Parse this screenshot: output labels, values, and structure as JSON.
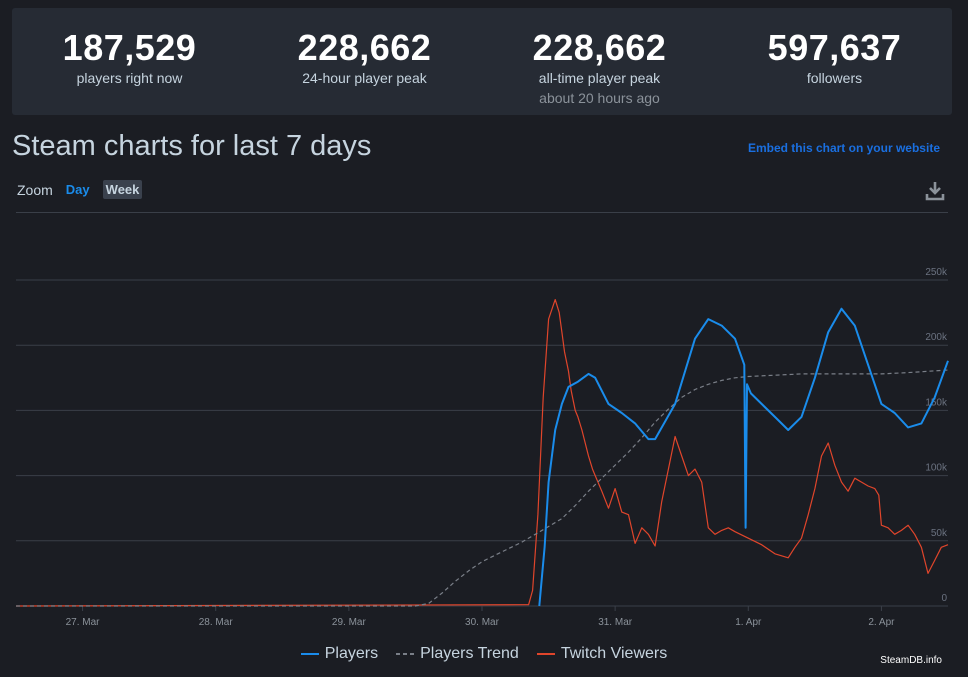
{
  "stats": [
    {
      "value": "187,529",
      "label": "players right now",
      "sub": ""
    },
    {
      "value": "228,662",
      "label": "24-hour player peak",
      "sub": ""
    },
    {
      "value": "228,662",
      "label": "all-time player peak",
      "sub": "about 20 hours ago"
    },
    {
      "value": "597,637",
      "label": "followers",
      "sub": ""
    }
  ],
  "title": "Steam charts for last 7 days",
  "embed_link": "Embed this chart on your website",
  "zoom": {
    "label": "Zoom",
    "day": "Day",
    "week": "Week"
  },
  "credit": "SteamDB.info",
  "colors": {
    "players": "#1a8ceb",
    "trend": "#7a7f88",
    "twitch": "#e0452b",
    "grid": "#3a3f48"
  },
  "chart_data": {
    "type": "line",
    "title": "Steam charts for last 7 days",
    "x_unit": "days since 27 Mar 00:00",
    "xlim": [
      -0.5,
      6.5
    ],
    "ylim": [
      0,
      250000
    ],
    "yticks": [
      0,
      50000,
      100000,
      150000,
      200000,
      250000
    ],
    "ytick_labels": [
      "0",
      "50k",
      "100k",
      "150k",
      "200k",
      "250k"
    ],
    "xticks": [
      0,
      1,
      2,
      3,
      4,
      5,
      6
    ],
    "xtick_labels": [
      "27. Mar",
      "28. Mar",
      "29. Mar",
      "30. Mar",
      "31. Mar",
      "1. Apr",
      "2. Apr"
    ],
    "legend": [
      "Players",
      "Players Trend",
      "Twitch Viewers"
    ],
    "series": [
      {
        "name": "Players",
        "x": [
          3.43,
          3.47,
          3.5,
          3.55,
          3.6,
          3.65,
          3.72,
          3.8,
          3.85,
          3.95,
          4.05,
          4.15,
          4.25,
          4.3,
          4.45,
          4.6,
          4.7,
          4.8,
          4.9,
          4.97,
          4.98,
          4.99,
          5.02,
          5.1,
          5.2,
          5.3,
          5.4,
          5.5,
          5.6,
          5.7,
          5.8,
          5.9,
          6.0,
          6.1,
          6.2,
          6.3,
          6.4,
          6.5
        ],
        "values": [
          0,
          45000,
          95000,
          135000,
          155000,
          168000,
          172000,
          178000,
          175000,
          155000,
          148000,
          140000,
          128000,
          128000,
          155000,
          205000,
          220000,
          215000,
          205000,
          185000,
          60000,
          170000,
          163000,
          155000,
          145000,
          135000,
          145000,
          175000,
          210000,
          228000,
          215000,
          185000,
          155000,
          148000,
          137000,
          140000,
          160000,
          188000
        ]
      },
      {
        "name": "Players Trend",
        "x": [
          -0.5,
          2.5,
          2.6,
          2.7,
          2.8,
          2.9,
          3.0,
          3.1,
          3.2,
          3.3,
          3.4,
          3.5,
          3.6,
          3.7,
          3.8,
          3.9,
          4.0,
          4.1,
          4.2,
          4.3,
          4.4,
          4.5,
          4.6,
          4.7,
          4.8,
          4.9,
          5.0,
          5.2,
          5.4,
          5.6,
          5.8,
          6.0,
          6.2,
          6.5
        ],
        "values": [
          0,
          0,
          2000,
          10000,
          19000,
          27000,
          34000,
          39000,
          44000,
          49000,
          55000,
          61000,
          67000,
          77000,
          88000,
          98000,
          108000,
          118000,
          129000,
          141000,
          151000,
          160000,
          166000,
          170000,
          173000,
          175000,
          176000,
          177000,
          178000,
          178000,
          178000,
          178000,
          179000,
          181000
        ]
      },
      {
        "name": "Twitch Viewers",
        "x": [
          -0.5,
          3.35,
          3.38,
          3.42,
          3.46,
          3.5,
          3.55,
          3.58,
          3.6,
          3.62,
          3.65,
          3.67,
          3.7,
          3.72,
          3.75,
          3.8,
          3.83,
          3.85,
          3.9,
          3.95,
          4.0,
          4.05,
          4.1,
          4.15,
          4.2,
          4.25,
          4.3,
          4.35,
          4.4,
          4.45,
          4.5,
          4.55,
          4.6,
          4.65,
          4.7,
          4.75,
          4.8,
          4.85,
          4.9,
          5.0,
          5.1,
          5.2,
          5.3,
          5.35,
          5.4,
          5.45,
          5.5,
          5.55,
          5.6,
          5.65,
          5.7,
          5.75,
          5.8,
          5.85,
          5.9,
          5.95,
          5.98,
          6.0,
          6.05,
          6.1,
          6.15,
          6.2,
          6.25,
          6.3,
          6.35,
          6.4,
          6.45,
          6.5
        ],
        "values": [
          0,
          1000,
          12000,
          70000,
          160000,
          220000,
          235000,
          225000,
          210000,
          195000,
          180000,
          165000,
          150000,
          145000,
          135000,
          115000,
          105000,
          100000,
          88000,
          75000,
          90000,
          72000,
          70000,
          48000,
          60000,
          55000,
          46000,
          80000,
          105000,
          130000,
          115000,
          100000,
          105000,
          95000,
          60000,
          55000,
          58000,
          60000,
          57000,
          52000,
          47000,
          40000,
          37000,
          45000,
          52000,
          70000,
          90000,
          115000,
          125000,
          108000,
          95000,
          88000,
          98000,
          95000,
          92000,
          90000,
          85000,
          62000,
          60000,
          55000,
          58000,
          62000,
          55000,
          45000,
          25000,
          35000,
          45000,
          47000
        ]
      }
    ]
  }
}
